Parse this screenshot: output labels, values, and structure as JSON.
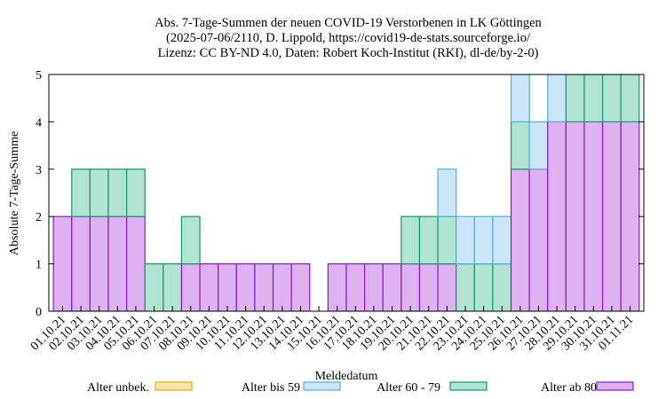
{
  "chart_data": {
    "type": "bar",
    "stacked": true,
    "title": [
      "Abs. 7-Tage-Summen der neuen COVID-19 Verstorbenen in LK Göttingen",
      "(2025-07-06/2110, D. Lippold, https://covid19-de-stats.sourceforge.io/",
      "Lizenz: CC BY-ND 4.0, Daten: Robert Koch-Institut (RKI), dl-de/by-2-0)"
    ],
    "xlabel": "Meldedatum",
    "ylabel": "Absolute 7-Tage-Summe",
    "ylim": [
      0,
      5
    ],
    "yticks": [
      "0",
      "1",
      "2",
      "3",
      "4",
      "5"
    ],
    "grid": false,
    "legend_position": "bottom",
    "categories": [
      "01.10.21",
      "02.10.21",
      "03.10.21",
      "04.10.21",
      "05.10.21",
      "06.10.21",
      "07.10.21",
      "08.10.21",
      "09.10.21",
      "10.10.21",
      "11.10.21",
      "12.10.21",
      "13.10.21",
      "14.10.21",
      "15.10.21",
      "16.10.21",
      "17.10.21",
      "18.10.21",
      "19.10.21",
      "20.10.21",
      "21.10.21",
      "22.10.21",
      "23.10.21",
      "24.10.21",
      "25.10.21",
      "26.10.21",
      "27.10.21",
      "28.10.21",
      "29.10.21",
      "30.10.21",
      "31.10.21",
      "01.11.21"
    ],
    "series": [
      {
        "name": "Alter unbek.",
        "fill": "#fde5a5",
        "stroke": "#e8a317",
        "values": [
          0,
          0,
          0,
          0,
          0,
          0,
          0,
          0,
          0,
          0,
          0,
          0,
          0,
          0,
          0,
          0,
          0,
          0,
          0,
          0,
          0,
          0,
          0,
          0,
          0,
          0,
          0,
          0,
          0,
          0,
          0,
          0
        ]
      },
      {
        "name": "Alter ab 80",
        "fill": "#deb2f0",
        "stroke": "#8a18c8",
        "values": [
          2,
          2,
          2,
          2,
          2,
          0,
          0,
          1,
          1,
          1,
          1,
          1,
          1,
          1,
          0,
          1,
          1,
          1,
          1,
          1,
          1,
          1,
          0,
          0,
          0,
          3,
          3,
          4,
          4,
          4,
          4,
          4
        ]
      },
      {
        "name": "Alter 60 - 79",
        "fill": "#b1e3d3",
        "stroke": "#119873",
        "values": [
          0,
          1,
          1,
          1,
          1,
          1,
          1,
          1,
          0,
          0,
          0,
          0,
          0,
          0,
          0,
          0,
          0,
          0,
          0,
          1,
          1,
          1,
          1,
          1,
          1,
          1,
          0,
          0,
          1,
          1,
          1,
          1
        ]
      },
      {
        "name": "Alter bis 59",
        "fill": "#cae6f7",
        "stroke": "#52acda",
        "values": [
          0,
          0,
          0,
          0,
          0,
          0,
          0,
          0,
          0,
          0,
          0,
          0,
          0,
          0,
          0,
          0,
          0,
          0,
          0,
          0,
          0,
          1,
          1,
          1,
          1,
          1,
          1,
          1,
          0,
          0,
          0,
          0
        ]
      }
    ],
    "legend_order": [
      0,
      3,
      2,
      1
    ]
  }
}
